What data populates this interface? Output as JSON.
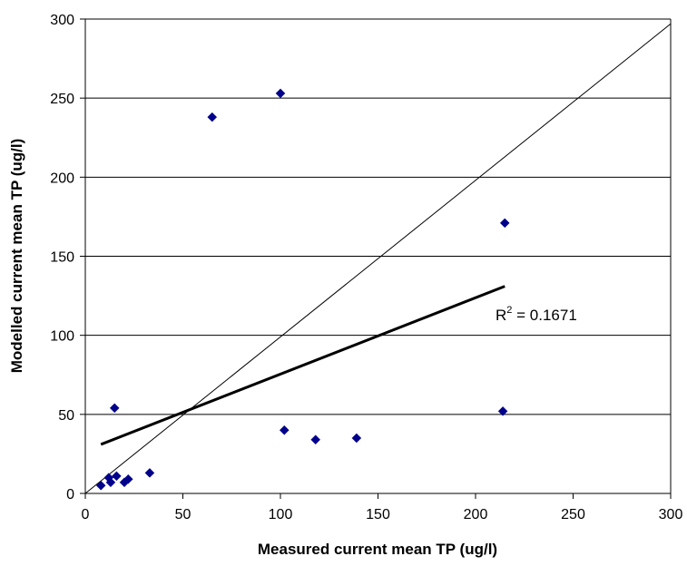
{
  "chart_data": {
    "type": "scatter",
    "xlabel": "Measured current mean TP (ug/l)",
    "ylabel": "Modelled current mean TP (ug/l)",
    "xlim": [
      0,
      300
    ],
    "ylim": [
      0,
      300
    ],
    "xticks": [
      "0",
      "50",
      "100",
      "150",
      "200",
      "250",
      "300"
    ],
    "yticks": [
      "0",
      "50",
      "100",
      "150",
      "200",
      "250",
      "300"
    ],
    "grid": "horizontal",
    "marker_color": "#00008B",
    "points": [
      {
        "x": 8,
        "y": 5
      },
      {
        "x": 12,
        "y": 10
      },
      {
        "x": 13,
        "y": 7
      },
      {
        "x": 15,
        "y": 54
      },
      {
        "x": 16,
        "y": 11
      },
      {
        "x": 20,
        "y": 7
      },
      {
        "x": 22,
        "y": 9
      },
      {
        "x": 33,
        "y": 13
      },
      {
        "x": 65,
        "y": 238
      },
      {
        "x": 100,
        "y": 253
      },
      {
        "x": 102,
        "y": 40
      },
      {
        "x": 118,
        "y": 34
      },
      {
        "x": 139,
        "y": 35
      },
      {
        "x": 214,
        "y": 52
      },
      {
        "x": 215,
        "y": 171
      }
    ],
    "one_to_one_line": {
      "from": [
        0,
        0
      ],
      "to": [
        300,
        297
      ]
    },
    "trendline": {
      "from": [
        8,
        31
      ],
      "to": [
        215,
        131
      ]
    },
    "r2_label": {
      "prefix": "R",
      "sup": "2",
      "text": " = 0.1671"
    }
  }
}
